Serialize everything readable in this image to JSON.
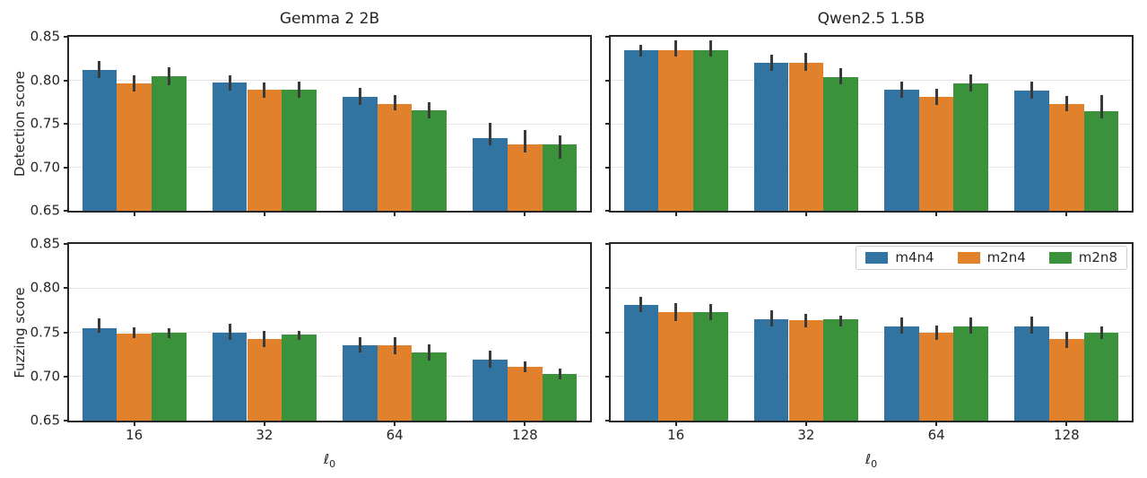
{
  "figure": {
    "background": "#ffffff",
    "text_color": "#262626"
  },
  "colors": {
    "m4n4": "#3274a1",
    "m2n4": "#e1812c",
    "m2n8": "#3a923a",
    "error_bar": "#3a3a3a",
    "grid": "#e6e6e6",
    "spine": "#262626"
  },
  "axes": {
    "ytick_labels": [
      "0.85",
      "0.80",
      "0.75",
      "0.70",
      "0.65"
    ],
    "ytick_values": [
      0.85,
      0.8,
      0.75,
      0.7,
      0.65
    ],
    "xtick_labels": [
      "16",
      "32",
      "64",
      "128"
    ],
    "ylim": [
      0.65,
      0.85
    ],
    "xlabel_main": "ℓ",
    "xlabel_sub": "0"
  },
  "legend": {
    "position": "upper-right-of-bottom-right-panel",
    "entries": [
      {
        "label": "m4n4",
        "color": "#3274a1"
      },
      {
        "label": "m2n4",
        "color": "#e1812c"
      },
      {
        "label": "m2n8",
        "color": "#3a923a"
      }
    ]
  },
  "chart_data": [
    {
      "id": "gemma-detection",
      "type": "bar",
      "title": "Gemma 2 2B",
      "ylabel": "Detection score",
      "xlabel": "",
      "categories": [
        "16",
        "32",
        "64",
        "128"
      ],
      "ylim": [
        0.65,
        0.85
      ],
      "grid": true,
      "show_ytick_labels": true,
      "show_xtick_labels": false,
      "series": [
        {
          "name": "m4n4",
          "color": "#3274a1",
          "values": [
            0.812,
            0.797,
            0.781,
            0.734
          ],
          "ci_low": [
            0.803,
            0.788,
            0.772,
            0.725
          ],
          "ci_high": [
            0.822,
            0.806,
            0.791,
            0.751
          ]
        },
        {
          "name": "m2n4",
          "color": "#e1812c",
          "values": [
            0.796,
            0.789,
            0.773,
            0.726
          ],
          "ci_low": [
            0.787,
            0.78,
            0.765,
            0.717
          ],
          "ci_high": [
            0.806,
            0.797,
            0.783,
            0.743
          ]
        },
        {
          "name": "m2n8",
          "color": "#3a923a",
          "values": [
            0.805,
            0.789,
            0.765,
            0.726
          ],
          "ci_low": [
            0.794,
            0.78,
            0.756,
            0.71
          ],
          "ci_high": [
            0.815,
            0.798,
            0.775,
            0.737
          ]
        }
      ]
    },
    {
      "id": "qwen-detection",
      "type": "bar",
      "title": "Qwen2.5 1.5B",
      "ylabel": "",
      "xlabel": "",
      "categories": [
        "16",
        "32",
        "64",
        "128"
      ],
      "ylim": [
        0.65,
        0.85
      ],
      "grid": true,
      "show_ytick_labels": false,
      "show_xtick_labels": false,
      "series": [
        {
          "name": "m4n4",
          "color": "#3274a1",
          "values": [
            0.835,
            0.82,
            0.789,
            0.788
          ],
          "ci_low": [
            0.827,
            0.811,
            0.78,
            0.779
          ],
          "ci_high": [
            0.841,
            0.829,
            0.798,
            0.798
          ]
        },
        {
          "name": "m2n4",
          "color": "#e1812c",
          "values": [
            0.835,
            0.82,
            0.781,
            0.773
          ],
          "ci_low": [
            0.827,
            0.811,
            0.772,
            0.764
          ],
          "ci_high": [
            0.846,
            0.831,
            0.79,
            0.782
          ]
        },
        {
          "name": "m2n8",
          "color": "#3a923a",
          "values": [
            0.835,
            0.804,
            0.796,
            0.764
          ],
          "ci_low": [
            0.827,
            0.795,
            0.787,
            0.756
          ],
          "ci_high": [
            0.846,
            0.814,
            0.807,
            0.783
          ]
        }
      ]
    },
    {
      "id": "gemma-fuzzing",
      "type": "bar",
      "title": "",
      "ylabel": "Fuzzing score",
      "xlabel": "ℓ₀",
      "categories": [
        "16",
        "32",
        "64",
        "128"
      ],
      "ylim": [
        0.65,
        0.85
      ],
      "grid": true,
      "show_ytick_labels": true,
      "show_xtick_labels": true,
      "series": [
        {
          "name": "m4n4",
          "color": "#3274a1",
          "values": [
            0.755,
            0.75,
            0.735,
            0.719
          ],
          "ci_low": [
            0.749,
            0.741,
            0.727,
            0.71
          ],
          "ci_high": [
            0.766,
            0.76,
            0.744,
            0.729
          ]
        },
        {
          "name": "m2n4",
          "color": "#e1812c",
          "values": [
            0.749,
            0.742,
            0.735,
            0.711
          ],
          "ci_low": [
            0.743,
            0.733,
            0.725,
            0.705
          ],
          "ci_high": [
            0.756,
            0.752,
            0.744,
            0.717
          ]
        },
        {
          "name": "m2n8",
          "color": "#3a923a",
          "values": [
            0.75,
            0.747,
            0.727,
            0.703
          ],
          "ci_low": [
            0.743,
            0.741,
            0.718,
            0.697
          ],
          "ci_high": [
            0.755,
            0.752,
            0.736,
            0.709
          ]
        }
      ]
    },
    {
      "id": "qwen-fuzzing",
      "type": "bar",
      "title": "",
      "ylabel": "",
      "xlabel": "ℓ₀",
      "categories": [
        "16",
        "32",
        "64",
        "128"
      ],
      "ylim": [
        0.65,
        0.85
      ],
      "grid": true,
      "show_ytick_labels": false,
      "show_xtick_labels": true,
      "series": [
        {
          "name": "m4n4",
          "color": "#3274a1",
          "values": [
            0.781,
            0.765,
            0.757,
            0.757
          ],
          "ci_low": [
            0.773,
            0.757,
            0.748,
            0.748
          ],
          "ci_high": [
            0.79,
            0.775,
            0.767,
            0.768
          ]
        },
        {
          "name": "m2n4",
          "color": "#e1812c",
          "values": [
            0.773,
            0.764,
            0.75,
            0.742
          ],
          "ci_low": [
            0.763,
            0.756,
            0.741,
            0.732
          ],
          "ci_high": [
            0.783,
            0.771,
            0.758,
            0.751
          ]
        },
        {
          "name": "m2n8",
          "color": "#3a923a",
          "values": [
            0.773,
            0.765,
            0.757,
            0.75
          ],
          "ci_low": [
            0.764,
            0.757,
            0.748,
            0.742
          ],
          "ci_high": [
            0.782,
            0.769,
            0.767,
            0.757
          ]
        }
      ]
    }
  ]
}
